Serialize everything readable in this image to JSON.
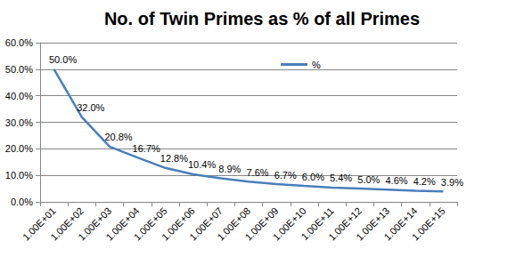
{
  "chart_data": {
    "type": "line",
    "title": "No. of Twin Primes as % of all Primes",
    "categories": [
      "1.00E+01",
      "1.00E+02",
      "1.00E+03",
      "1.00E+04",
      "1.00E+05",
      "1.00E+06",
      "1.00E+07",
      "1.00E+08",
      "1.00E+09",
      "1.00E+10",
      "1.00E+11",
      "1.00E+12",
      "1.00E+13",
      "1.00E+14",
      "1.00E+15"
    ],
    "series": [
      {
        "name": "%",
        "color": "#4a7ebb",
        "values": [
          50.0,
          32.0,
          20.8,
          16.7,
          12.8,
          10.4,
          8.9,
          7.6,
          6.7,
          6.0,
          5.4,
          5.0,
          4.6,
          4.2,
          3.9
        ],
        "value_labels": [
          "50.0%",
          "32.0%",
          "20.8%",
          "16.7%",
          "12.8%",
          "10.4%",
          "8.9%",
          "7.6%",
          "6.7%",
          "6.0%",
          "5.4%",
          "5.0%",
          "4.6%",
          "4.2%",
          "3.9%"
        ]
      }
    ],
    "ylim": [
      0,
      60
    ],
    "yticks": [
      {
        "value": 0,
        "label": "0.0%"
      },
      {
        "value": 10,
        "label": "10.0%"
      },
      {
        "value": 20,
        "label": "20.0%"
      },
      {
        "value": 30,
        "label": "30.0%"
      },
      {
        "value": 40,
        "label": "40.0%"
      },
      {
        "value": 50,
        "label": "50.0%"
      },
      {
        "value": 60,
        "label": "60.0%"
      }
    ],
    "grid": true,
    "legend": "top",
    "data_labels": true
  }
}
